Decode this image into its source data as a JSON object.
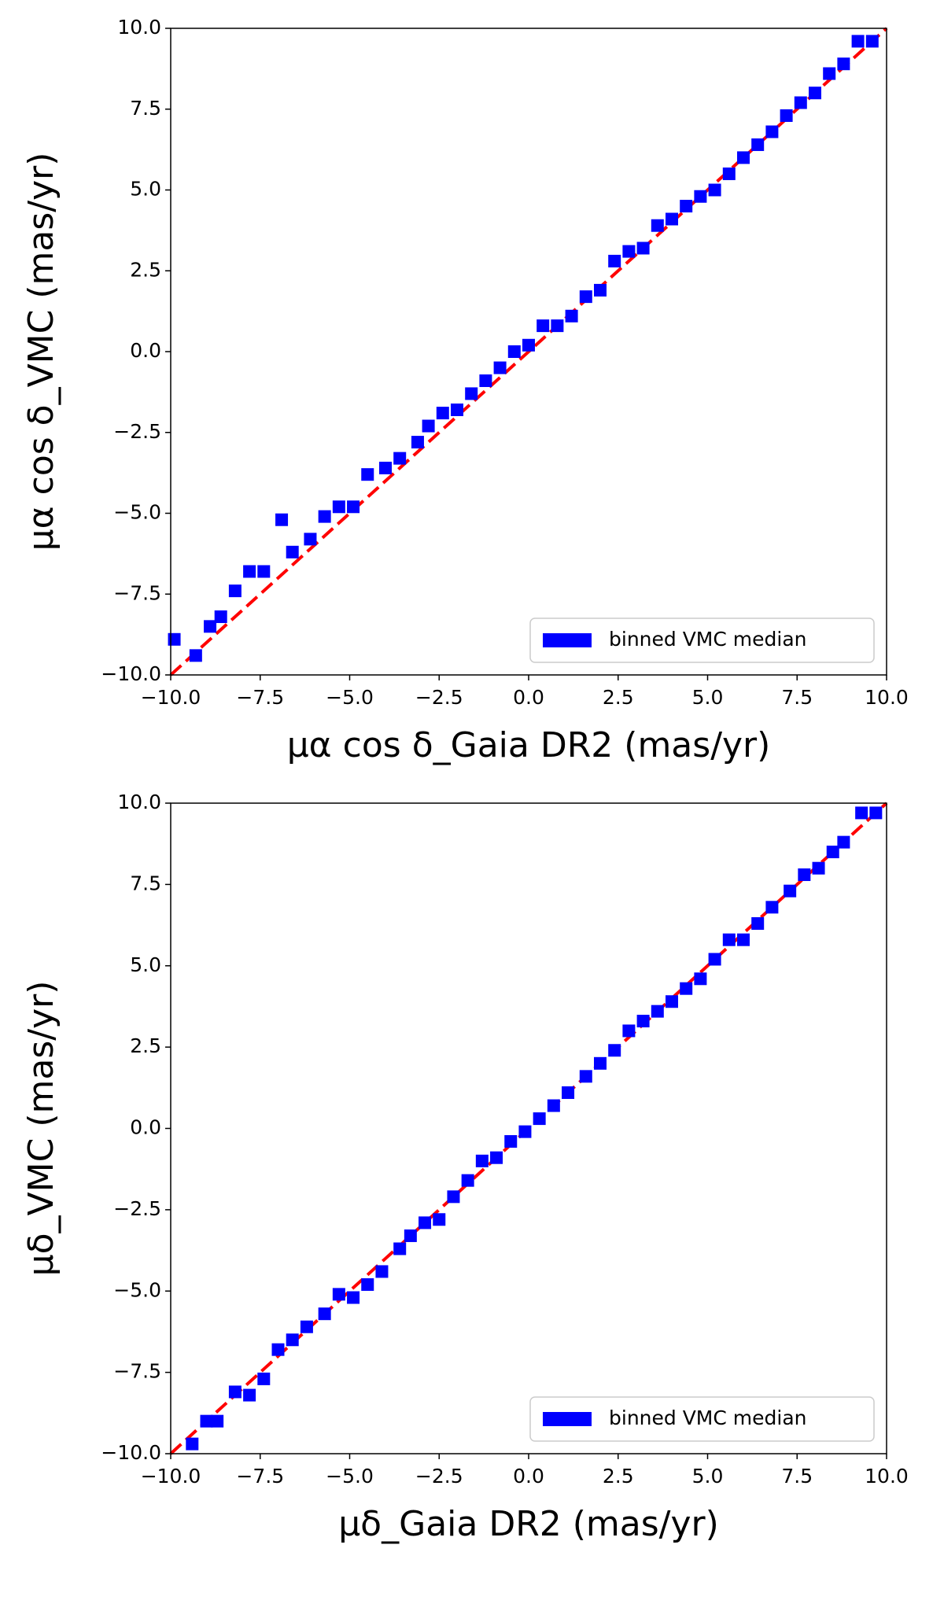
{
  "chart_data": [
    {
      "type": "scatter",
      "xlabel": "μα cos δ_Gaia DR2 (mas/yr)",
      "ylabel": "μα cos δ_VMC (mas/yr)",
      "xlim": [
        -10,
        10
      ],
      "ylim": [
        -10,
        10
      ],
      "xticks": [
        {
          "value": -10,
          "label": "−10.0"
        },
        {
          "value": -7.5,
          "label": "−7.5"
        },
        {
          "value": -5,
          "label": "−5.0"
        },
        {
          "value": -2.5,
          "label": "−2.5"
        },
        {
          "value": 0,
          "label": "0.0"
        },
        2.5,
        {
          "value": 5,
          "label": "5.0"
        },
        7.5,
        {
          "value": 10,
          "label": "10.0"
        }
      ],
      "yticks": [
        {
          "value": -10,
          "label": "−10.0"
        },
        {
          "value": -7.5,
          "label": "−7.5"
        },
        {
          "value": -5,
          "label": "−5.0"
        },
        {
          "value": -2.5,
          "label": "−2.5"
        },
        {
          "value": 0,
          "label": "0.0"
        },
        2.5,
        {
          "value": 5,
          "label": "5.0"
        },
        7.5,
        {
          "value": 10,
          "label": "10.0"
        }
      ],
      "legend": "lower right",
      "reference_line": {
        "x": [
          -10,
          10
        ],
        "y": [
          -10,
          10
        ],
        "color": "#ff0000",
        "style": "dashed"
      },
      "series": [
        {
          "name": "binned VMC median",
          "color": "#0000ff",
          "x": [
            -9.9,
            -9.3,
            -8.9,
            -8.6,
            -8.2,
            -7.8,
            -7.4,
            -6.9,
            -6.6,
            -6.1,
            -5.7,
            -5.3,
            -4.9,
            -4.5,
            -4.0,
            -3.6,
            -3.1,
            -2.8,
            -2.4,
            -2.0,
            -1.6,
            -1.2,
            -0.8,
            -0.4,
            0.0,
            0.4,
            0.8,
            1.2,
            1.6,
            2.0,
            2.4,
            2.8,
            3.2,
            3.6,
            4.0,
            4.4,
            4.8,
            5.2,
            5.6,
            6.0,
            6.4,
            6.8,
            7.2,
            7.6,
            8.0,
            8.4,
            8.8,
            9.2,
            9.6
          ],
          "values": [
            -8.9,
            -9.4,
            -8.5,
            -8.2,
            -7.4,
            -6.8,
            -6.8,
            -5.2,
            -6.2,
            -5.8,
            -5.1,
            -4.8,
            -4.8,
            -3.8,
            -3.6,
            -3.3,
            -2.8,
            -2.3,
            -1.9,
            -1.8,
            -1.3,
            -0.9,
            -0.5,
            0.0,
            0.2,
            0.8,
            0.8,
            1.1,
            1.7,
            1.9,
            2.8,
            3.1,
            3.2,
            3.9,
            4.1,
            4.5,
            4.8,
            5.0,
            5.5,
            6.0,
            6.4,
            6.8,
            7.3,
            7.7,
            8.0,
            8.6,
            8.9,
            9.6,
            9.6
          ]
        }
      ]
    },
    {
      "type": "scatter",
      "xlabel": "μδ_Gaia DR2 (mas/yr)",
      "ylabel": "μδ_VMC (mas/yr)",
      "xlim": [
        -10,
        10
      ],
      "ylim": [
        -10,
        10
      ],
      "xticks": [
        {
          "value": -10,
          "label": "−10.0"
        },
        {
          "value": -7.5,
          "label": "−7.5"
        },
        {
          "value": -5,
          "label": "−5.0"
        },
        {
          "value": -2.5,
          "label": "−2.5"
        },
        {
          "value": 0,
          "label": "0.0"
        },
        2.5,
        {
          "value": 5,
          "label": "5.0"
        },
        7.5,
        {
          "value": 10,
          "label": "10.0"
        }
      ],
      "yticks": [
        {
          "value": -10,
          "label": "−10.0"
        },
        {
          "value": -7.5,
          "label": "−7.5"
        },
        {
          "value": -5,
          "label": "−5.0"
        },
        {
          "value": -2.5,
          "label": "−2.5"
        },
        {
          "value": 0,
          "label": "0.0"
        },
        2.5,
        {
          "value": 5,
          "label": "5.0"
        },
        7.5,
        {
          "value": 10,
          "label": "10.0"
        }
      ],
      "legend": "lower right",
      "reference_line": {
        "x": [
          -10,
          10
        ],
        "y": [
          -10,
          10
        ],
        "color": "#ff0000",
        "style": "dashed"
      },
      "series": [
        {
          "name": "binned VMC median",
          "color": "#0000ff",
          "x": [
            -9.4,
            -9.0,
            -8.7,
            -8.2,
            -7.8,
            -7.4,
            -7.0,
            -6.6,
            -6.2,
            -5.7,
            -5.3,
            -4.9,
            -4.5,
            -4.1,
            -3.6,
            -3.3,
            -2.9,
            -2.5,
            -2.1,
            -1.7,
            -1.3,
            -0.9,
            -0.5,
            -0.1,
            0.3,
            0.7,
            1.1,
            1.6,
            2.0,
            2.4,
            2.8,
            3.2,
            3.6,
            4.0,
            4.4,
            4.8,
            5.2,
            5.6,
            6.0,
            6.4,
            6.8,
            7.3,
            7.7,
            8.1,
            8.5,
            8.8,
            9.3,
            9.7
          ],
          "values": [
            -9.7,
            -9.0,
            -9.0,
            -8.1,
            -8.2,
            -7.7,
            -6.8,
            -6.5,
            -6.1,
            -5.7,
            -5.1,
            -5.2,
            -4.8,
            -4.4,
            -3.7,
            -3.3,
            -2.9,
            -2.8,
            -2.1,
            -1.6,
            -1.0,
            -0.9,
            -0.4,
            -0.1,
            0.3,
            0.7,
            1.1,
            1.6,
            2.0,
            2.4,
            3.0,
            3.3,
            3.6,
            3.9,
            4.3,
            4.6,
            5.2,
            5.8,
            5.8,
            6.3,
            6.8,
            7.3,
            7.8,
            8.0,
            8.5,
            8.8,
            9.7,
            9.7
          ]
        }
      ]
    }
  ]
}
